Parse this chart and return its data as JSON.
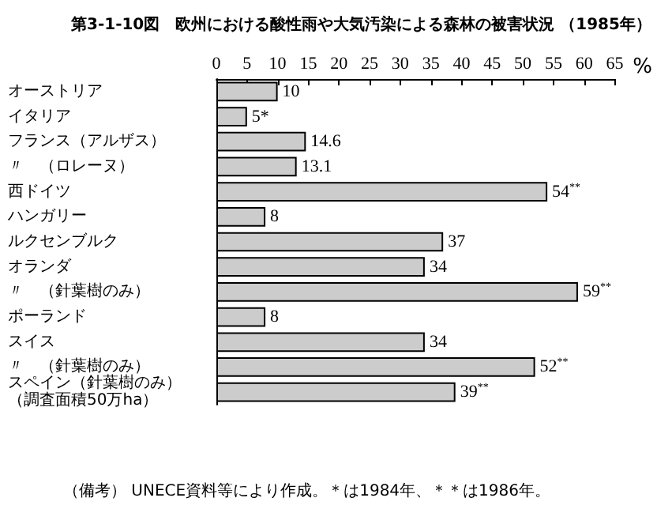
{
  "chart_data": {
    "type": "bar",
    "orientation": "horizontal",
    "title": "第3-1-10図　欧州における酸性雨や大気汚染による森林の被害状況 （1985年）",
    "xlabel": "%",
    "annotations": [
      "（備考） UNECE資料等により作成。＊は1984年、＊＊は1986年。"
    ],
    "categories": [
      "オーストリア",
      "イタリア",
      "フランス（アルザス）",
      "〃　（ロレーヌ）",
      "西ドイツ",
      "ハンガリー",
      "ルクセンブルク",
      "オランダ",
      "〃　（針葉樹のみ）",
      "ポーランド",
      "スイス",
      "〃　（針葉樹のみ）",
      "スペイン（針葉樹のみ）（調査面積50万ha）"
    ],
    "values": [
      10,
      5,
      14.6,
      13.1,
      54,
      8,
      37,
      34,
      59,
      8,
      34,
      52,
      39
    ],
    "value_labels": [
      "10",
      "5*",
      "14.6",
      "13.1",
      "54$^{**}$",
      "8",
      "37",
      "34",
      "59$^{**}$",
      "8",
      "34",
      "52$^{**}$",
      "39$^{**}$"
    ],
    "color": "#cccccc",
    "xlim": [
      0,
      65
    ],
    "xticks": [
      0,
      5,
      10,
      15,
      20,
      25,
      30,
      35,
      40,
      45,
      50,
      55,
      60,
      65
    ],
    "grid": false
  }
}
